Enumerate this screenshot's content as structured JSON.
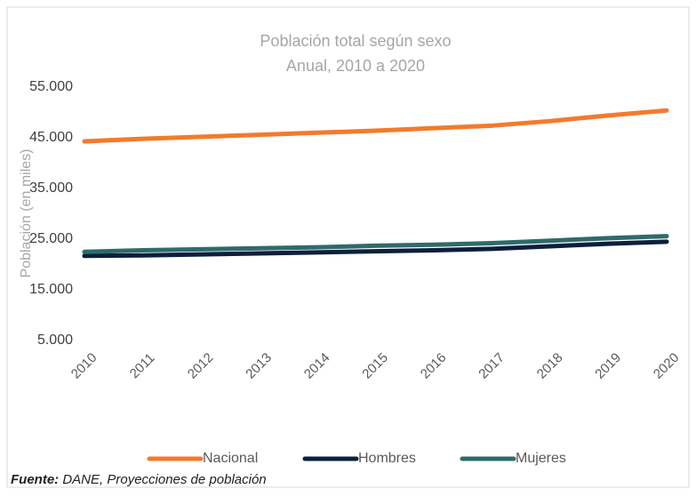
{
  "chart_data": {
    "type": "line",
    "title": "Población total según sexo",
    "subtitle": "Anual,  2010 a  2020",
    "y_label": "Población (en miles)",
    "categories": [
      "2010",
      "2011",
      "2012",
      "2013",
      "2014",
      "2015",
      "2016",
      "2017",
      "2018",
      "2019",
      "2020"
    ],
    "series": [
      {
        "name": "Nacional",
        "color": "#f47a2c",
        "values": [
          44300,
          44800,
          45200,
          45600,
          46000,
          46400,
          46900,
          47400,
          48300,
          49400,
          50400
        ]
      },
      {
        "name": "Hombres",
        "color": "#0d1f3c",
        "values": [
          21700,
          21800,
          22000,
          22200,
          22400,
          22600,
          22800,
          23100,
          23600,
          24100,
          24500
        ]
      },
      {
        "name": "Mujeres",
        "color": "#2e6b6b",
        "values": [
          22500,
          22800,
          23000,
          23200,
          23400,
          23700,
          23900,
          24200,
          24700,
          25200,
          25600
        ]
      }
    ],
    "ylim": [
      5000,
      55000
    ],
    "yticks": [
      {
        "value": 5000,
        "label": "5.000"
      },
      {
        "value": 15000,
        "label": "15.000"
      },
      {
        "value": 25000,
        "label": "25.000"
      },
      {
        "value": 35000,
        "label": "35.000"
      },
      {
        "value": 45000,
        "label": "45.000"
      },
      {
        "value": 55000,
        "label": "55.000"
      }
    ],
    "grid": false,
    "legend": "bottom",
    "source_label": "Fuente:",
    "source_text": " DANE, Proyecciones de población"
  }
}
